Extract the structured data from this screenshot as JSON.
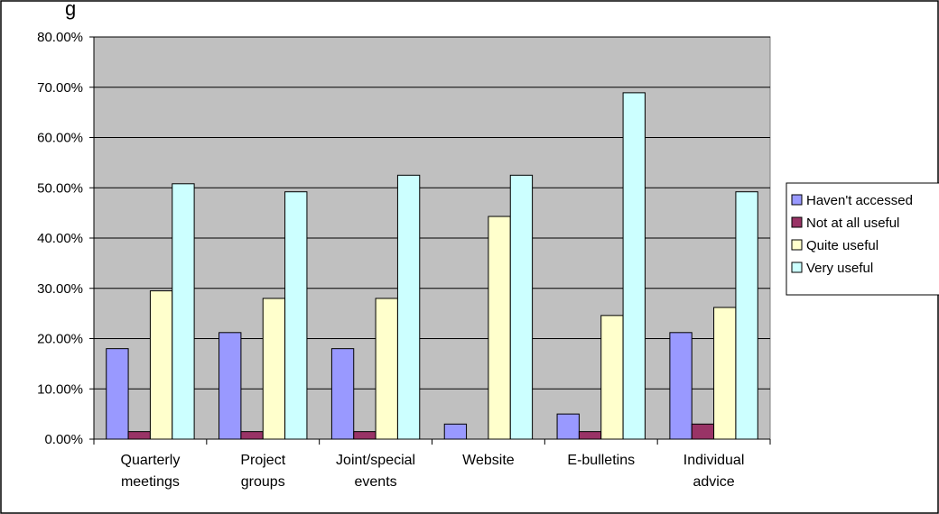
{
  "chart_title_fragment": "g",
  "chart_data": {
    "type": "bar",
    "title": "",
    "xlabel": "",
    "ylabel": "",
    "ylim": [
      0,
      0.8
    ],
    "y_tick_labels": [
      "0.00%",
      "10.00%",
      "20.00%",
      "30.00%",
      "40.00%",
      "50.00%",
      "60.00%",
      "70.00%",
      "80.00%"
    ],
    "y_ticks": [
      0,
      0.1,
      0.2,
      0.3,
      0.4,
      0.5,
      0.6,
      0.7,
      0.8
    ],
    "categories": [
      [
        "Quarterly",
        "meetings"
      ],
      [
        "Project",
        "groups"
      ],
      [
        "Joint/special",
        "events"
      ],
      [
        "Website"
      ],
      [
        "E-bulletins"
      ],
      [
        "Individual",
        "advice"
      ]
    ],
    "series": [
      {
        "name": "Haven't accessed",
        "color": "#9999ff",
        "values": [
          0.18,
          0.212,
          0.18,
          0.03,
          0.05,
          0.212
        ]
      },
      {
        "name": "Not at all useful",
        "color": "#993366",
        "values": [
          0.015,
          0.015,
          0.015,
          0.0,
          0.015,
          0.03
        ]
      },
      {
        "name": "Quite useful",
        "color": "#ffffcc",
        "values": [
          0.295,
          0.28,
          0.28,
          0.443,
          0.246,
          0.262
        ]
      },
      {
        "name": "Very useful",
        "color": "#ccffff",
        "values": [
          0.508,
          0.492,
          0.525,
          0.525,
          0.689,
          0.492
        ]
      }
    ],
    "grid": true,
    "plot_background": "#c0c0c0",
    "legend_position": "right"
  }
}
